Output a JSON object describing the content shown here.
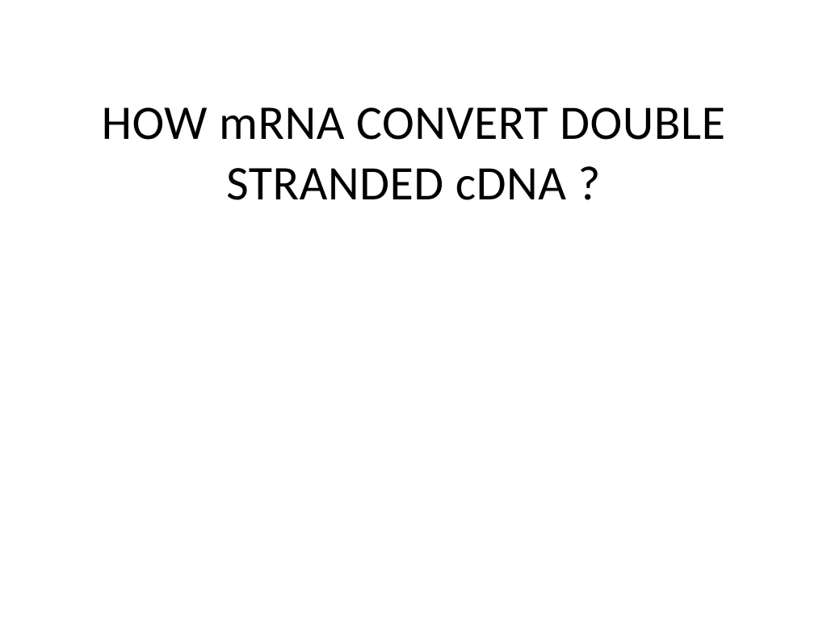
{
  "slide": {
    "title": "HOW mRNA CONVERT DOUBLE STRANDED cDNA ?",
    "background_color": "#ffffff",
    "text_color": "#000000",
    "font_family": "Calibri",
    "title_fontsize": 60,
    "title_fontweight": 400,
    "text_align": "center",
    "padding_top": 115,
    "line_height": 1.25
  }
}
